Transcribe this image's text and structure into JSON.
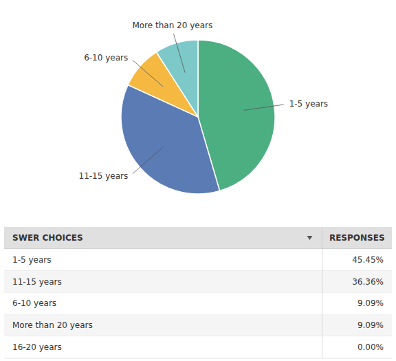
{
  "chart_data": [
    {
      "type": "pie",
      "categories": [
        "1-5 years",
        "11-15 years",
        "6-10 years",
        "More than 20 years"
      ],
      "values": [
        45.45,
        36.36,
        9.09,
        9.09
      ],
      "colors": [
        "#4CAF82",
        "#5B7BB5",
        "#F5B942",
        "#7DC8C8"
      ]
    },
    {
      "type": "table",
      "columns": [
        "SWER CHOICES",
        "RESPONSES"
      ],
      "categories": [
        "1-5 years",
        "11-15 years",
        "6-10 years",
        "More than 20 years",
        "16-20 years"
      ],
      "values": [
        45.45,
        36.36,
        9.09,
        9.09,
        0
      ],
      "value_labels": [
        "45.45%",
        "36.36%",
        "9.09%",
        "9.09%",
        "0.00%"
      ]
    }
  ]
}
